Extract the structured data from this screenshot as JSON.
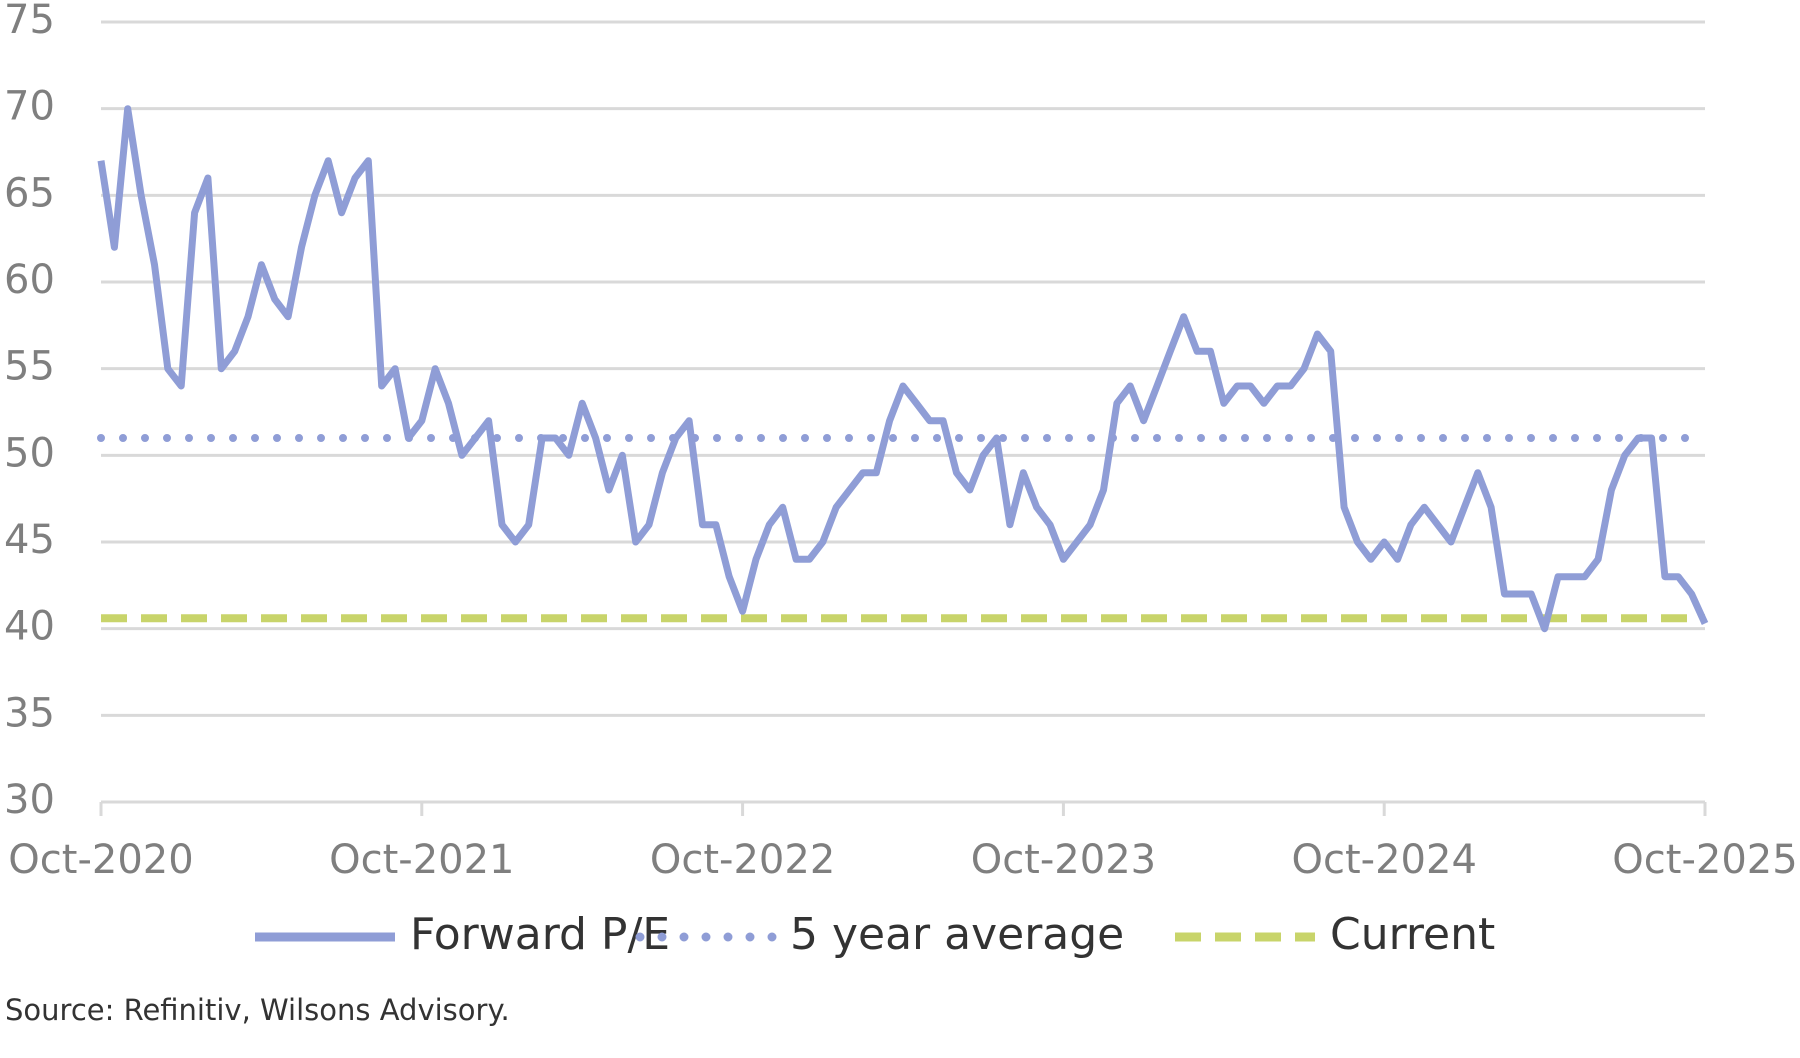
{
  "chart_data": {
    "type": "line",
    "categories": [
      "Oct-2020",
      null,
      null,
      null,
      null,
      null,
      null,
      null,
      null,
      null,
      null,
      null,
      null,
      null,
      null,
      null,
      null,
      null,
      null,
      null,
      null,
      null,
      null,
      null,
      "Oct-2021",
      null,
      null,
      null,
      null,
      null,
      null,
      null,
      null,
      null,
      null,
      null,
      null,
      null,
      null,
      null,
      null,
      null,
      null,
      null,
      null,
      null,
      null,
      null,
      "Oct-2022",
      null,
      null,
      null,
      null,
      null,
      null,
      null,
      null,
      null,
      null,
      null,
      null,
      null,
      null,
      null,
      null,
      null,
      null,
      null,
      null,
      null,
      null,
      null,
      "Oct-2023",
      null,
      null,
      null,
      null,
      null,
      null,
      null,
      null,
      null,
      null,
      null,
      null,
      null,
      null,
      null,
      null,
      null,
      null,
      null,
      null,
      null,
      null,
      null,
      "Oct-2024",
      null,
      null,
      null,
      null,
      null,
      null,
      null,
      null,
      null,
      null,
      null,
      null,
      null,
      null,
      null,
      null,
      null,
      null,
      null,
      null,
      null,
      null,
      null,
      "Oct-2025"
    ],
    "series": [
      {
        "name": "Forward P/E",
        "color": "#8f9dd6",
        "values": [
          67,
          62,
          70,
          65,
          61,
          55,
          54,
          64,
          66,
          55,
          56,
          58,
          61,
          59,
          58,
          62,
          65,
          67,
          64,
          66,
          67,
          54,
          55,
          51,
          52,
          55,
          53,
          50,
          51,
          52,
          46,
          45,
          46,
          51,
          51,
          50,
          53,
          51,
          48,
          50,
          45,
          46,
          49,
          51,
          52,
          46,
          46,
          43,
          41,
          44,
          46,
          47,
          44,
          44,
          45,
          47,
          48,
          49,
          49,
          52,
          54,
          53,
          52,
          52,
          49,
          48,
          50,
          51,
          46,
          49,
          47,
          46,
          44,
          45,
          46,
          48,
          53,
          54,
          52,
          54,
          56,
          58,
          56,
          56,
          53,
          54,
          54,
          53,
          54,
          54,
          55,
          57,
          56,
          47,
          45,
          44,
          45,
          44,
          46,
          47,
          46,
          45,
          47,
          49,
          47,
          42,
          42,
          42,
          40,
          43,
          43,
          43,
          44,
          48,
          50,
          51,
          51,
          43,
          43,
          42,
          40.3
        ]
      }
    ],
    "reference_lines": [
      {
        "name": "5 year average",
        "value": 51,
        "color": "#8f9dd6",
        "style": "dotted"
      },
      {
        "name": "Current",
        "value": 40.6,
        "color": "#c8d46a",
        "style": "dashed"
      }
    ],
    "ylim": [
      30,
      75
    ],
    "yticks": [
      30,
      35,
      40,
      45,
      50,
      55,
      60,
      65,
      70,
      75
    ],
    "grid": true,
    "source": "Source: Refinitiv, Wilsons Advisory."
  }
}
